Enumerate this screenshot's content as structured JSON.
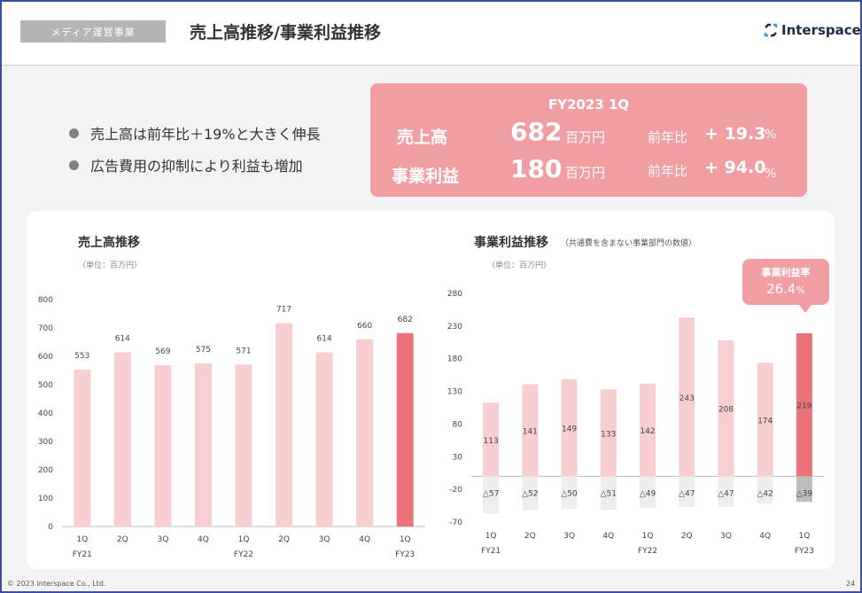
{
  "header": {
    "tag": "メディア運営事業",
    "title": "売上高推移/事業利益推移",
    "logo_text": "Interspace"
  },
  "bullets": [
    "売上高は前年比＋19%と大きく伸長",
    "広告費用の抑制により利益も増加"
  ],
  "kpi": {
    "period": "FY2023 1Q",
    "rows": [
      {
        "label": "売上高",
        "value": "682",
        "unit": "百万円",
        "yoy_label": "前年比",
        "yoy_value": "+ 19.3",
        "yoy_unit": "%"
      },
      {
        "label": "事業利益",
        "value": "180",
        "unit": "百万円",
        "yoy_label": "前年比",
        "yoy_value": "+ 94.0",
        "yoy_unit": "%"
      }
    ]
  },
  "chart_data": [
    {
      "type": "bar",
      "title": "売上高推移",
      "unit_label": "（単位：百万円）",
      "categories": [
        "1Q",
        "2Q",
        "3Q",
        "4Q",
        "1Q",
        "2Q",
        "3Q",
        "4Q",
        "1Q"
      ],
      "fy_labels": [
        {
          "index": 0,
          "label": "FY21"
        },
        {
          "index": 4,
          "label": "FY22"
        },
        {
          "index": 8,
          "label": "FY23"
        }
      ],
      "values": [
        553,
        614,
        569,
        575,
        571,
        717,
        614,
        660,
        682
      ],
      "yticks": [
        0,
        100,
        200,
        300,
        400,
        500,
        600,
        700,
        800
      ],
      "ylim": [
        0,
        800
      ],
      "highlight_index": 8,
      "colors": {
        "bar": "#f8cfd1",
        "highlight": "#ec7379"
      }
    },
    {
      "type": "bar",
      "title": "事業利益推移",
      "subtitle": "（共通費を含まない事業部門の数値）",
      "unit_label": "（単位：百万円）",
      "categories": [
        "1Q",
        "2Q",
        "3Q",
        "4Q",
        "1Q",
        "2Q",
        "3Q",
        "4Q",
        "1Q"
      ],
      "fy_labels": [
        {
          "index": 0,
          "label": "FY21"
        },
        {
          "index": 4,
          "label": "FY22"
        },
        {
          "index": 8,
          "label": "FY23"
        }
      ],
      "values": [
        113,
        141,
        149,
        133,
        142,
        243,
        208,
        174,
        219
      ],
      "negative_values": [
        -57,
        -52,
        -50,
        -51,
        -49,
        -47,
        -47,
        -42,
        -39
      ],
      "negative_labels": [
        "△57",
        "△52",
        "△50",
        "△51",
        "△49",
        "△47",
        "△47",
        "△42",
        "△39"
      ],
      "yticks": [
        -70,
        -20,
        30,
        80,
        130,
        180,
        230,
        280
      ],
      "ylim": [
        -70,
        280
      ],
      "highlight_index": 8,
      "colors": {
        "bar": "#f8cfd1",
        "highlight": "#ec7379",
        "negative": "#eeeeee",
        "negative_highlight": "#bdbdbd"
      },
      "callout": {
        "label": "事業利益率",
        "value": "26.4",
        "unit": "%"
      }
    }
  ],
  "footer": {
    "copyright": "© 2023 Interspace Co., Ltd.",
    "page": "24"
  }
}
